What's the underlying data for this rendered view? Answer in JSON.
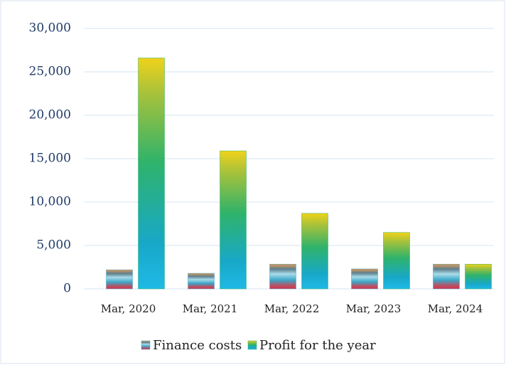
{
  "chart_data": {
    "type": "bar",
    "categories": [
      "Mar, 2020",
      "Mar, 2021",
      "Mar, 2022",
      "Mar, 2023",
      "Mar, 2024"
    ],
    "series": [
      {
        "name": "Finance costs",
        "color": "#3aa6c8",
        "values": [
          2200,
          1800,
          2850,
          2300,
          2850
        ]
      },
      {
        "name": "Profit for the year",
        "color": "#2fb36a",
        "values": [
          26600,
          15900,
          8700,
          6500,
          2850
        ]
      }
    ],
    "ylim": [
      0,
      30000
    ],
    "yticks": [
      0,
      {
        "value": 5000,
        "label": "5,000"
      },
      {
        "value": 10000,
        "label": "10,000"
      },
      {
        "value": 15000,
        "label": "15,000"
      },
      {
        "value": 20000,
        "label": "20,000"
      },
      {
        "value": 25000,
        "label": "25,000"
      },
      {
        "value": 30000,
        "label": "30,000"
      }
    ],
    "grid": true,
    "legend": "bottom"
  }
}
